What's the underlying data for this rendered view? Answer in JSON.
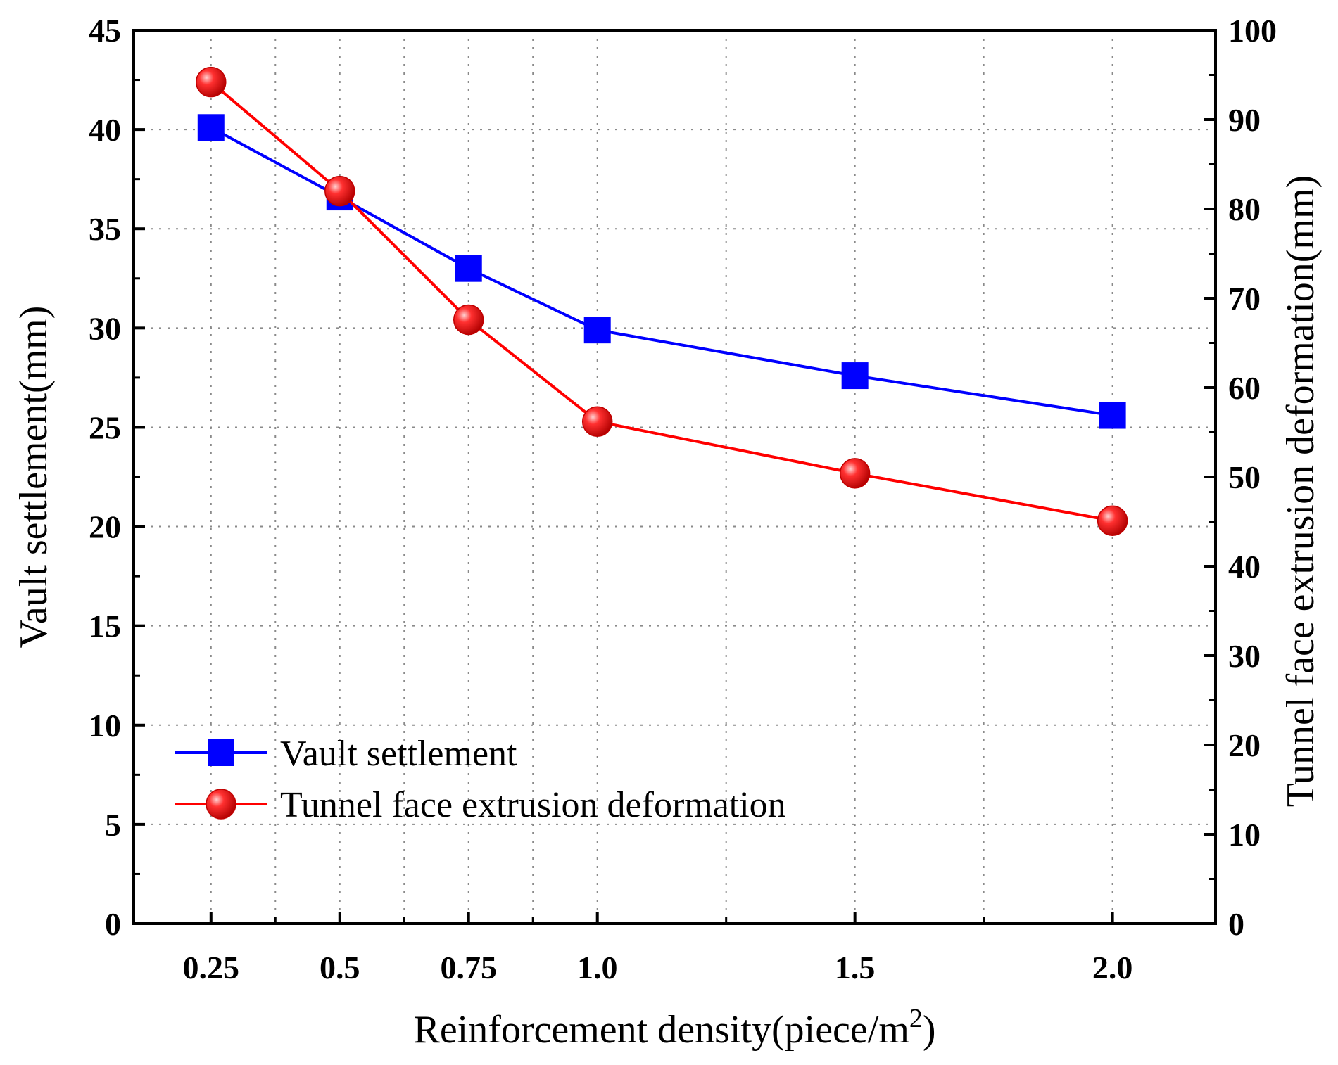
{
  "chart_data": {
    "type": "line",
    "x_labels": [
      "0.25",
      "0.5",
      "0.75",
      "1.0",
      "1.5",
      "2.0"
    ],
    "x": [
      0.25,
      0.5,
      0.75,
      1.0,
      1.5,
      2.0
    ],
    "xlim": [
      0.1,
      2.2
    ],
    "xlabel": "Reinforcement density(piece/m",
    "xlabel_sup": "2",
    "xlabel_end": ")",
    "ylabel_left": "Vault settlement(mm)",
    "ylabel_right": "Tunnel face extrusion deformation(mm)",
    "ylim_left": [
      0,
      45
    ],
    "ylim_right": [
      0,
      100
    ],
    "yticks_left": [
      "0",
      "5",
      "10",
      "15",
      "20",
      "25",
      "30",
      "35",
      "40",
      "45"
    ],
    "yticks_right": [
      "0",
      "10",
      "20",
      "30",
      "40",
      "50",
      "60",
      "70",
      "80",
      "90",
      "100"
    ],
    "grid": "dotted",
    "legend_position": "lower-left",
    "series": [
      {
        "name": "Vault settlement",
        "axis": "left",
        "marker": "square",
        "color": "#0000ff",
        "values": [
          40.1,
          36.6,
          33.0,
          29.9,
          27.6,
          25.6
        ]
      },
      {
        "name": "Tunnel face extrusion deformation",
        "axis": "right",
        "marker": "circle",
        "color": "#ff0000",
        "values": [
          94.2,
          82.0,
          67.6,
          56.2,
          50.4,
          45.1
        ]
      }
    ]
  }
}
